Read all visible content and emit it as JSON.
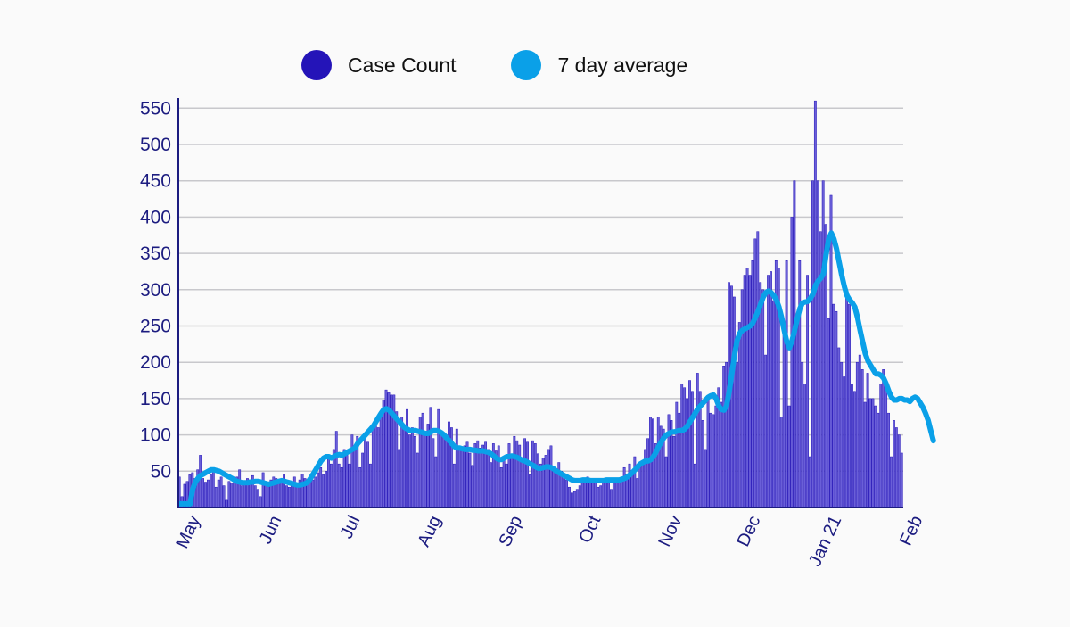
{
  "chart_data": {
    "type": "bar",
    "title": "",
    "xlabel": "",
    "ylabel": "",
    "ylim": [
      0,
      560
    ],
    "grid": true,
    "legend_position": "top-center",
    "legend": [
      {
        "name": "Case Count",
        "color": "#2414b8",
        "kind": "bar"
      },
      {
        "name": "7 day average",
        "color": "#0aa0e8",
        "kind": "line"
      }
    ],
    "y_ticks": [
      50,
      100,
      150,
      200,
      250,
      300,
      350,
      400,
      450,
      500,
      550
    ],
    "x_ticks": [
      {
        "label": "May",
        "day": 3
      },
      {
        "label": "Jun",
        "day": 34
      },
      {
        "label": "Jul",
        "day": 64
      },
      {
        "label": "Aug",
        "day": 95
      },
      {
        "label": "Sep",
        "day": 126
      },
      {
        "label": "Oct",
        "day": 156
      },
      {
        "label": "Nov",
        "day": 187
      },
      {
        "label": "Dec",
        "day": 217
      },
      {
        "label": "Jan 21",
        "day": 248
      },
      {
        "label": "Feb",
        "day": 279
      }
    ],
    "series": [
      {
        "name": "Case Count",
        "type": "bar",
        "color": "#2414b8",
        "values": [
          42,
          15,
          32,
          36,
          45,
          48,
          40,
          52,
          72,
          40,
          35,
          38,
          45,
          50,
          28,
          38,
          42,
          30,
          10,
          36,
          34,
          36,
          42,
          52,
          30,
          35,
          40,
          38,
          44,
          30,
          25,
          15,
          48,
          30,
          35,
          38,
          42,
          40,
          35,
          38,
          45,
          30,
          28,
          35,
          42,
          30,
          38,
          46,
          40,
          32,
          35,
          38,
          42,
          48,
          55,
          45,
          50,
          70,
          60,
          80,
          105,
          60,
          55,
          80,
          72,
          60,
          100,
          85,
          98,
          55,
          75,
          100,
          90,
          60,
          115,
          120,
          110,
          130,
          148,
          162,
          158,
          155,
          155,
          132,
          80,
          125,
          108,
          135,
          100,
          110,
          98,
          75,
          125,
          130,
          100,
          115,
          138,
          95,
          70,
          135,
          105,
          98,
          100,
          118,
          110,
          60,
          108,
          80,
          80,
          85,
          90,
          75,
          58,
          88,
          92,
          82,
          86,
          90,
          80,
          62,
          88,
          78,
          85,
          55,
          70,
          60,
          88,
          74,
          98,
          92,
          86,
          62,
          95,
          90,
          45,
          92,
          88,
          74,
          60,
          68,
          72,
          80,
          85,
          55,
          50,
          62,
          50,
          40,
          38,
          28,
          20,
          22,
          25,
          30,
          35,
          38,
          42,
          40,
          35,
          36,
          28,
          30,
          40,
          38,
          35,
          25,
          40,
          38,
          36,
          42,
          55,
          45,
          60,
          50,
          70,
          40,
          62,
          60,
          80,
          95,
          125,
          122,
          88,
          125,
          112,
          108,
          70,
          128,
          120,
          98,
          145,
          130,
          170,
          165,
          150,
          175,
          160,
          60,
          185,
          160,
          120,
          80,
          150,
          130,
          128,
          140,
          165,
          145,
          195,
          200,
          310,
          305,
          290,
          200,
          255,
          300,
          320,
          330,
          320,
          340,
          370,
          380,
          310,
          300,
          210,
          320,
          325,
          285,
          340,
          330,
          125,
          255,
          340,
          140,
          400,
          450,
          250,
          340,
          200,
          170,
          320,
          70,
          450,
          560,
          450,
          380,
          450,
          390,
          260,
          430,
          280,
          270,
          220,
          200,
          180,
          290,
          280,
          170,
          160,
          200,
          210,
          190,
          145,
          185,
          150,
          150,
          140,
          130,
          170,
          190,
          170,
          130,
          70,
          120,
          110,
          100,
          75
        ]
      },
      {
        "name": "7 day average",
        "type": "line",
        "color": "#0aa0e8",
        "values": [
          5,
          5,
          5,
          5,
          5,
          25,
          35,
          40,
          44,
          46,
          48,
          50,
          52,
          52,
          51,
          50,
          48,
          46,
          44,
          42,
          40,
          38,
          36,
          35,
          34,
          34,
          34,
          35,
          35,
          36,
          36,
          35,
          34,
          33,
          32,
          33,
          34,
          35,
          36,
          37,
          36,
          35,
          34,
          33,
          32,
          31,
          31,
          32,
          33,
          35,
          40,
          46,
          52,
          58,
          64,
          68,
          70,
          70,
          68,
          70,
          72,
          73,
          72,
          74,
          76,
          78,
          80,
          82,
          88,
          92,
          96,
          100,
          104,
          108,
          112,
          118,
          124,
          130,
          135,
          136,
          134,
          130,
          126,
          122,
          118,
          114,
          110,
          108,
          106,
          106,
          106,
          105,
          104,
          103,
          102,
          102,
          104,
          106,
          106,
          105,
          103,
          100,
          96,
          92,
          88,
          84,
          82,
          82,
          81,
          80,
          80,
          80,
          79,
          79,
          78,
          78,
          78,
          77,
          76,
          74,
          71,
          68,
          66,
          66,
          68,
          70,
          70,
          71,
          70,
          69,
          67,
          65,
          64,
          62,
          60,
          58,
          56,
          54,
          54,
          55,
          56,
          56,
          55,
          53,
          50,
          48,
          46,
          44,
          42,
          40,
          38,
          37,
          37,
          37,
          38,
          38,
          38,
          37,
          37,
          37,
          37,
          37,
          37,
          38,
          38,
          38,
          38,
          38,
          38,
          39,
          40,
          42,
          45,
          48,
          52,
          56,
          60,
          62,
          64,
          64,
          66,
          70,
          76,
          84,
          90,
          96,
          100,
          102,
          104,
          104,
          105,
          106,
          106,
          108,
          112,
          118,
          124,
          130,
          136,
          140,
          144,
          148,
          152,
          154,
          155,
          150,
          140,
          135,
          134,
          140,
          160,
          185,
          210,
          230,
          240,
          244,
          246,
          248,
          250,
          254,
          262,
          270,
          280,
          290,
          296,
          298,
          296,
          292,
          286,
          276,
          262,
          244,
          228,
          220,
          230,
          244,
          260,
          274,
          282,
          283,
          284,
          288,
          294,
          306,
          312,
          316,
          322,
          348,
          370,
          378,
          370,
          356,
          338,
          320,
          304,
          292,
          286,
          282,
          276,
          262,
          244,
          228,
          212,
          202,
          196,
          190,
          184,
          184,
          182,
          178,
          170,
          160,
          152,
          148,
          148,
          150,
          150,
          148,
          148,
          146,
          150,
          152,
          150,
          144,
          138,
          130,
          120,
          106,
          92
        ]
      }
    ]
  }
}
